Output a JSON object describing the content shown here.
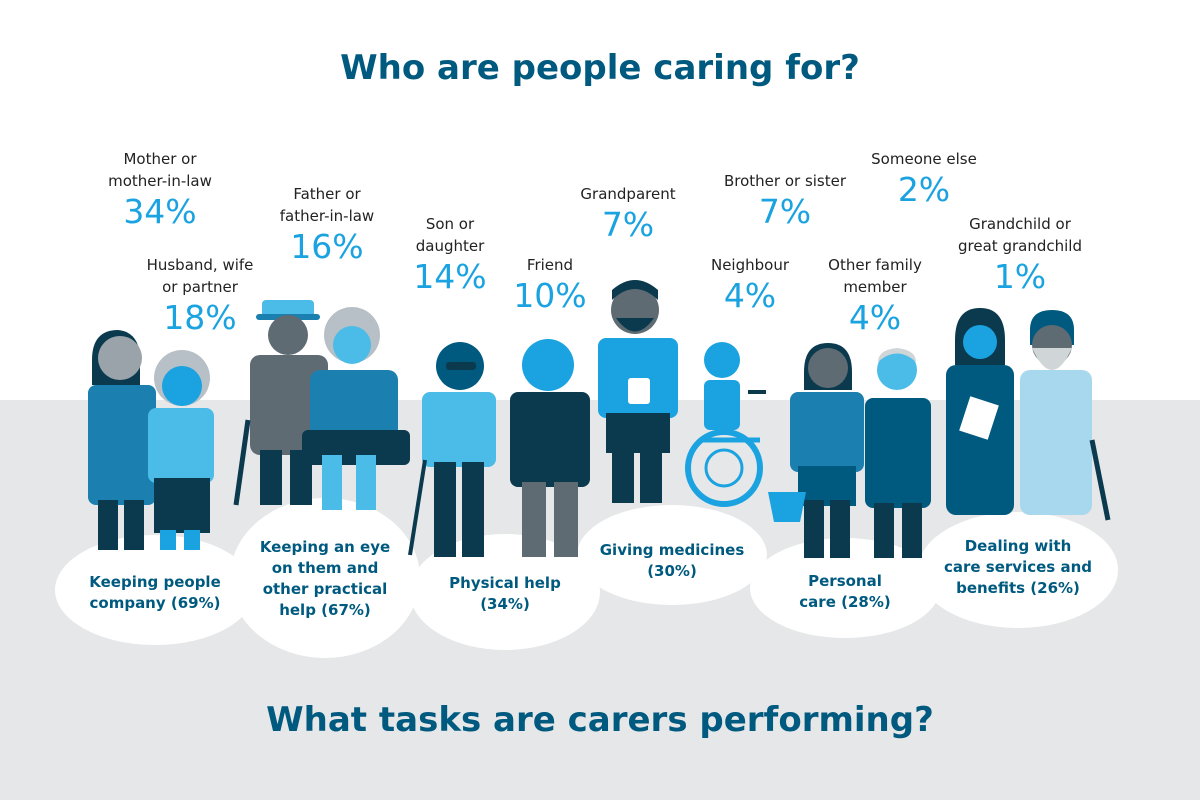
{
  "title": "Who are people caring for?",
  "subtitle": "What tasks are carers performing?",
  "relations": [
    {
      "label_1": "Mother or",
      "label_2": "mother-in-law",
      "percent": "34%"
    },
    {
      "label_1": "Husband, wife",
      "label_2": "or partner",
      "percent": "18%"
    },
    {
      "label_1": "Father or",
      "label_2": "father-in-law",
      "percent": "16%"
    },
    {
      "label_1": "Son or",
      "label_2": "daughter",
      "percent": "14%"
    },
    {
      "label_1": "Friend",
      "label_2": "",
      "percent": "10%"
    },
    {
      "label_1": "Grandparent",
      "label_2": "",
      "percent": "7%"
    },
    {
      "label_1": "Brother or sister",
      "label_2": "",
      "percent": "7%"
    },
    {
      "label_1": "Neighbour",
      "label_2": "",
      "percent": "4%"
    },
    {
      "label_1": "Other family",
      "label_2": "member",
      "percent": "4%"
    },
    {
      "label_1": "Someone else",
      "label_2": "",
      "percent": "2%"
    },
    {
      "label_1": "Grandchild or",
      "label_2": "great grandchild",
      "percent": "1%"
    }
  ],
  "tasks": [
    {
      "line_1": "Keeping people",
      "line_2": "company (69%)",
      "line_3": ""
    },
    {
      "line_1": "Keeping an eye",
      "line_2": "on them and",
      "line_3": "other practical",
      "line_4": "help (67%)"
    },
    {
      "line_1": "Physical help",
      "line_2": "(34%)",
      "line_3": ""
    },
    {
      "line_1": "Giving medicines",
      "line_2": "(30%)",
      "line_3": ""
    },
    {
      "line_1": "Personal",
      "line_2": "care (28%)",
      "line_3": ""
    },
    {
      "line_1": "Dealing with",
      "line_2": "care services and",
      "line_3": "benefits (26%)"
    }
  ],
  "colors": {
    "dark_teal": "#005a7f",
    "bright_blue": "#1aa3e0",
    "light_blue": "#4bbbe8",
    "navy": "#0b3a4f",
    "mid_blue": "#1b7fb0",
    "gray_band": "#e6e7e8"
  }
}
